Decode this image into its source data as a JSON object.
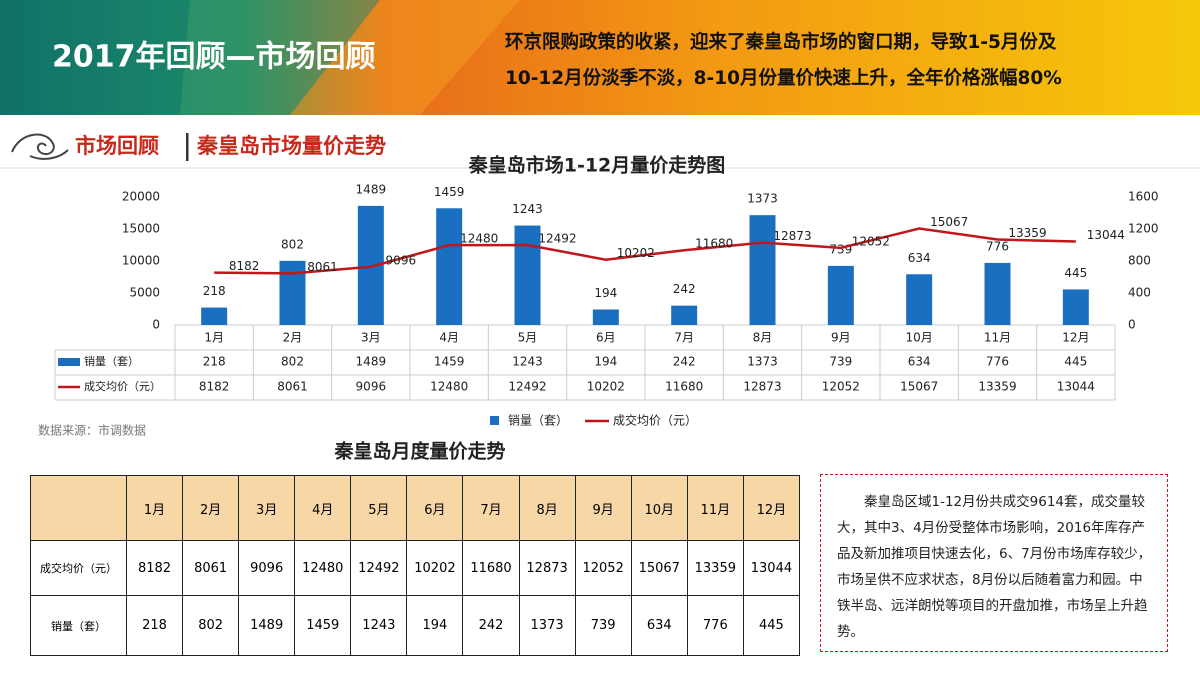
{
  "header": {
    "title": "2017年回顾—市场回顾",
    "summary_lines": [
      "环京限购政策的收紧，迎来了秦皇岛市场的窗口期，导致1-5月份及",
      "10-12月份淡季不淡，8-10月份量价快速上升，全年价格涨幅80%"
    ]
  },
  "section": {
    "label": "市场回顾",
    "title": "秦皇岛市场量价走势"
  },
  "chart_data": {
    "type": "bar-line",
    "title": "秦皇岛市场1-12月量价走势图",
    "categories": [
      "1月",
      "2月",
      "3月",
      "4月",
      "5月",
      "6月",
      "7月",
      "8月",
      "9月",
      "10月",
      "11月",
      "12月"
    ],
    "series": [
      {
        "name": "销量（套）",
        "type": "bar",
        "axis": "y2",
        "color": "#1a6fc0",
        "values": [
          218,
          802,
          1489,
          1459,
          1243,
          194,
          242,
          1373,
          739,
          634,
          776,
          445
        ]
      },
      {
        "name": "成交均价（元）",
        "type": "line",
        "color": "#c0161c",
        "values": [
          8182,
          8061,
          9096,
          12480,
          12492,
          10202,
          11680,
          12873,
          12052,
          15067,
          13359,
          13044
        ]
      }
    ],
    "ylim": [
      0,
      20000
    ],
    "yticks": [
      0,
      5000,
      10000,
      15000,
      20000
    ],
    "y2lim": [
      0,
      1600
    ],
    "y2ticks": [
      0,
      400,
      800,
      1200,
      1600
    ],
    "legend": "bottom",
    "grid": false
  },
  "source": "数据来源：市调数据",
  "table": {
    "title": "秦皇岛月度量价走势"
  },
  "note": {
    "text": "秦皇岛区域1-12月份共成交9614套，成交量较大，其中3、4月份受整体市场影响，2016年库存产品及新加推项目快速去化，6、7月份市场库存较少，市场呈供不应求状态，8月份以后随着富力和园。中铁半岛、远洋朗悦等项目的开盘加推，市场呈上升趋势。"
  }
}
